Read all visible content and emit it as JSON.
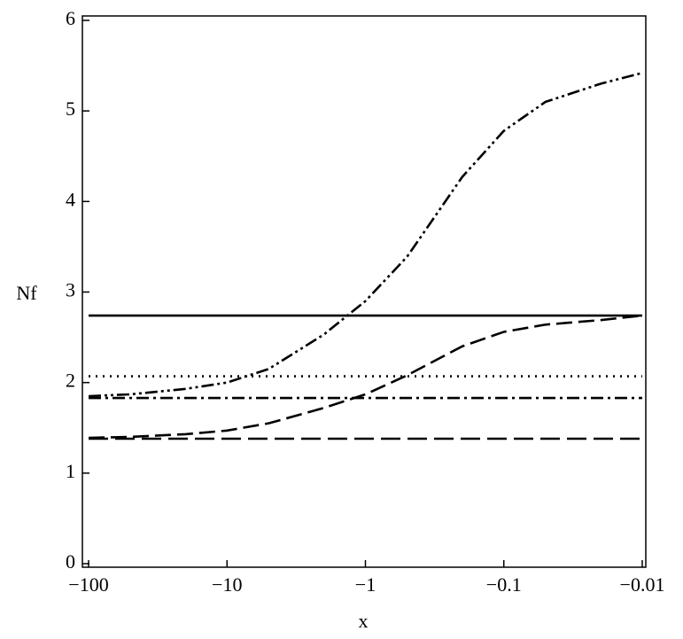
{
  "chart_data": {
    "type": "line",
    "x_label": "x",
    "y_label": "Nf",
    "xscale": "neglog",
    "xlim": [
      -100,
      -0.01
    ],
    "ylim": [
      0,
      6
    ],
    "xticks": [
      {
        "value": -100,
        "label": "−100"
      },
      {
        "value": -10,
        "label": "−10"
      },
      {
        "value": -1,
        "label": "−1"
      },
      {
        "value": -0.1,
        "label": "−0.1"
      },
      {
        "value": -0.01,
        "label": "−0.01"
      }
    ],
    "yticks": [
      0,
      1,
      2,
      3,
      4,
      5,
      6
    ],
    "series": [
      {
        "color": "#000000",
        "dash": "solid",
        "x": [
          -100,
          -0.01
        ],
        "values": [
          2.74,
          2.74
        ]
      },
      {
        "color": "#000000",
        "dash": "dotted",
        "x": [
          -100,
          -0.01
        ],
        "values": [
          2.07,
          2.07
        ]
      },
      {
        "color": "#000000",
        "dash": "dashdot",
        "x": [
          -100,
          -0.01
        ],
        "values": [
          1.83,
          1.83
        ]
      },
      {
        "color": "#000000",
        "dash": "longdash",
        "x": [
          -100,
          -0.01
        ],
        "values": [
          1.38,
          1.38
        ]
      },
      {
        "color": "#000000",
        "dash": "dashdotdot",
        "x": [
          -100,
          -50,
          -20,
          -10,
          -5,
          -2,
          -1,
          -0.5,
          -0.2,
          -0.1,
          -0.05,
          -0.02,
          -0.01
        ],
        "values": [
          1.85,
          1.87,
          1.93,
          2.0,
          2.15,
          2.53,
          2.9,
          3.39,
          4.27,
          4.78,
          5.1,
          5.3,
          5.42
        ]
      },
      {
        "color": "#000000",
        "dash": "dash",
        "x": [
          -100,
          -50,
          -20,
          -10,
          -5,
          -2,
          -1,
          -0.5,
          -0.2,
          -0.1,
          -0.05,
          -0.02,
          -0.01
        ],
        "values": [
          1.39,
          1.4,
          1.43,
          1.47,
          1.55,
          1.72,
          1.87,
          2.08,
          2.4,
          2.56,
          2.64,
          2.69,
          2.74
        ]
      }
    ]
  }
}
